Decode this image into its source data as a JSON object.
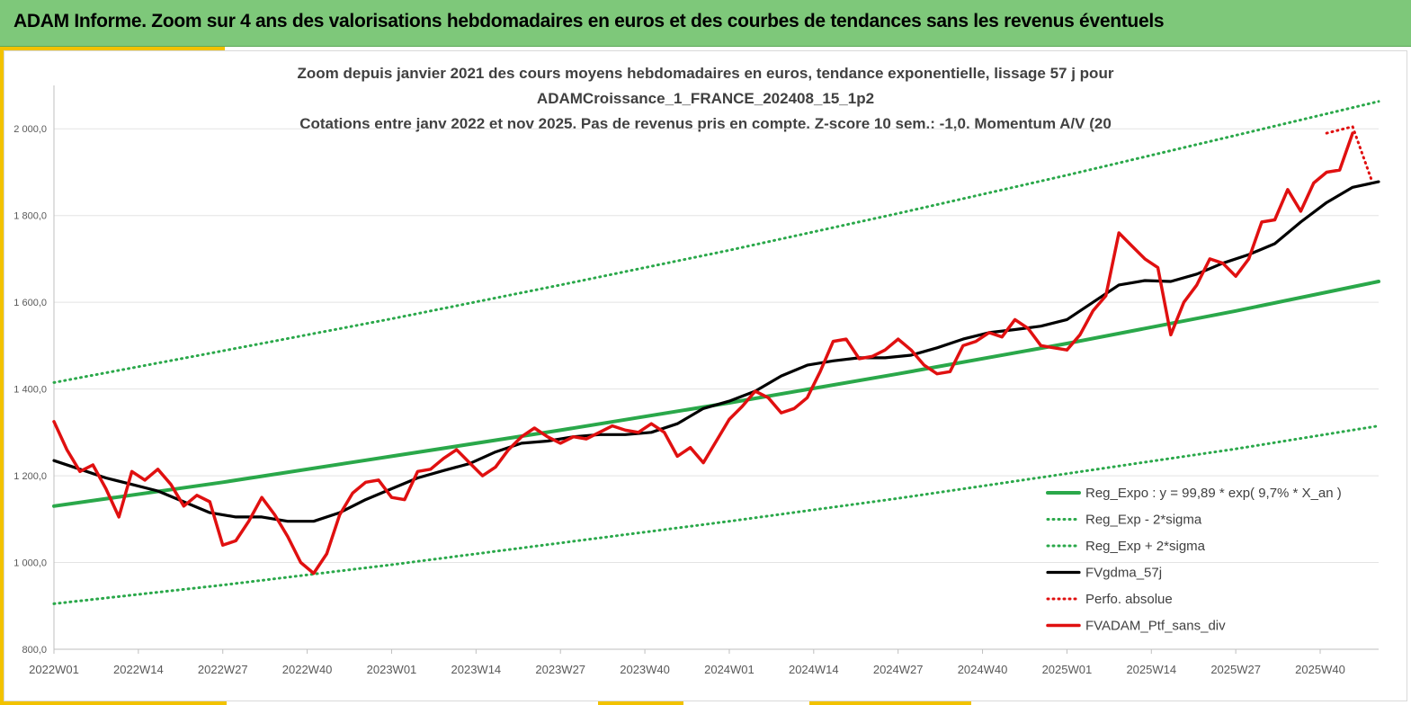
{
  "banner": {
    "title": "ADAM Informe. Zoom sur 4 ans des valorisations hebdomadaires en euros et des courbes de tendances sans les revenus éventuels"
  },
  "chart_data": {
    "type": "line",
    "title": [
      "Zoom depuis janvier 2021 des cours moyens hebdomadaires  en euros, tendance exponentielle, lissage 57 j pour",
      "ADAMCroissance_1_FRANCE_202408_15_1p2",
      "Cotations  entre janv 2022 et nov 2025. Pas de revenus pris en compte. Z-score 10 sem.: -1,0. Momentum A/V (20"
    ],
    "xlabel": "",
    "ylabel": "",
    "ylim": [
      800,
      2100
    ],
    "yticks": [
      "800,0",
      "1 000,0",
      "1 200,0",
      "1 400,0",
      "1 600,0",
      "1 800,0",
      "2 000,0"
    ],
    "ytick_values": [
      800,
      1000,
      1200,
      1400,
      1600,
      1800,
      2000
    ],
    "week_count": 204,
    "xtick_labels": [
      "2022W01",
      "2022W14",
      "2022W27",
      "2022W40",
      "2023W01",
      "2023W14",
      "2023W27",
      "2023W40",
      "2024W01",
      "2024W14",
      "2024W27",
      "2024W40",
      "2025W01",
      "2025W14",
      "2025W27",
      "2025W40"
    ],
    "xtick_index": [
      0,
      13,
      26,
      39,
      52,
      65,
      78,
      91,
      104,
      117,
      130,
      143,
      156,
      169,
      182,
      195
    ],
    "grid": "horizontal",
    "legend_position": "bottom-right",
    "colors": {
      "reg_expo": "#2aa84a",
      "sigma": "#2aa84a",
      "fvgdma": "#000000",
      "perfo": "#e01010",
      "ptf": "#e01010"
    },
    "series": [
      {
        "name": "Reg_Expo : y = 99,89 * exp( 9,7% *  X_an )",
        "style": "solid-green",
        "x": [
          0,
          26,
          52,
          78,
          104,
          130,
          156,
          182,
          204
        ],
        "y": [
          1130,
          1185,
          1245,
          1305,
          1368,
          1435,
          1505,
          1580,
          1648
        ]
      },
      {
        "name": "Reg_Exp - 2*sigma",
        "style": "dotted-green",
        "x": [
          0,
          26,
          52,
          78,
          104,
          130,
          156,
          182,
          204
        ],
        "y": [
          905,
          948,
          995,
          1045,
          1095,
          1148,
          1205,
          1262,
          1315
        ]
      },
      {
        "name": "Reg_Exp + 2*sigma",
        "style": "dotted-green",
        "x": [
          0,
          26,
          52,
          78,
          104,
          130,
          156,
          182,
          204
        ],
        "y": [
          1415,
          1488,
          1562,
          1640,
          1720,
          1805,
          1893,
          1985,
          2063
        ]
      },
      {
        "name": "FVgdma_57j",
        "style": "solid-black",
        "x": [
          0,
          4,
          8,
          12,
          16,
          20,
          24,
          28,
          32,
          36,
          40,
          44,
          48,
          52,
          56,
          60,
          64,
          68,
          72,
          76,
          80,
          84,
          88,
          92,
          96,
          100,
          104,
          108,
          112,
          116,
          120,
          124,
          128,
          132,
          136,
          140,
          144,
          148,
          152,
          156,
          160,
          164,
          168,
          172,
          176,
          180,
          184,
          188,
          192,
          196,
          200,
          204
        ],
        "y": [
          1235,
          1215,
          1195,
          1180,
          1165,
          1140,
          1115,
          1105,
          1105,
          1095,
          1095,
          1115,
          1145,
          1170,
          1195,
          1212,
          1228,
          1255,
          1275,
          1280,
          1290,
          1295,
          1295,
          1300,
          1320,
          1355,
          1372,
          1395,
          1430,
          1455,
          1465,
          1472,
          1472,
          1478,
          1495,
          1515,
          1530,
          1537,
          1545,
          1560,
          1600,
          1640,
          1650,
          1648,
          1665,
          1690,
          1710,
          1735,
          1785,
          1830,
          1865,
          1878
        ]
      },
      {
        "name": "Perfo. absolue",
        "style": "dotted-red",
        "x": [
          196,
          200,
          203
        ],
        "y": [
          1990,
          2005,
          1878
        ]
      },
      {
        "name": "FVADAM_Ptf_sans_div",
        "style": "solid-red",
        "x": [
          0,
          2,
          4,
          6,
          8,
          10,
          12,
          14,
          16,
          18,
          20,
          22,
          24,
          26,
          28,
          30,
          32,
          34,
          36,
          38,
          40,
          42,
          44,
          46,
          48,
          50,
          52,
          54,
          56,
          58,
          60,
          62,
          64,
          66,
          68,
          70,
          72,
          74,
          76,
          78,
          80,
          82,
          84,
          86,
          88,
          90,
          92,
          94,
          96,
          98,
          100,
          102,
          104,
          106,
          108,
          110,
          112,
          114,
          116,
          118,
          120,
          122,
          124,
          126,
          128,
          130,
          132,
          134,
          136,
          138,
          140,
          142,
          144,
          146,
          148,
          150,
          152,
          154,
          156,
          158,
          160,
          162,
          164,
          166,
          168,
          170,
          172,
          174,
          176,
          178,
          180,
          182,
          184,
          186,
          188,
          190,
          192,
          194,
          196,
          198,
          200
        ],
        "y": [
          1325,
          1260,
          1210,
          1225,
          1170,
          1105,
          1210,
          1190,
          1215,
          1180,
          1130,
          1155,
          1140,
          1040,
          1050,
          1095,
          1150,
          1110,
          1060,
          1000,
          975,
          1020,
          1110,
          1160,
          1185,
          1190,
          1150,
          1145,
          1210,
          1215,
          1240,
          1260,
          1230,
          1200,
          1220,
          1260,
          1290,
          1310,
          1290,
          1275,
          1290,
          1285,
          1300,
          1315,
          1305,
          1300,
          1320,
          1300,
          1245,
          1265,
          1230,
          1280,
          1330,
          1360,
          1395,
          1380,
          1345,
          1355,
          1380,
          1440,
          1510,
          1515,
          1470,
          1475,
          1490,
          1515,
          1490,
          1455,
          1435,
          1440,
          1500,
          1510,
          1530,
          1520,
          1560,
          1540,
          1500,
          1495,
          1490,
          1525,
          1580,
          1615,
          1760,
          1730,
          1700,
          1680,
          1525,
          1600,
          1640,
          1700,
          1690,
          1660,
          1700,
          1785,
          1790,
          1860,
          1810,
          1875,
          1900,
          1905,
          1990
        ]
      }
    ]
  }
}
